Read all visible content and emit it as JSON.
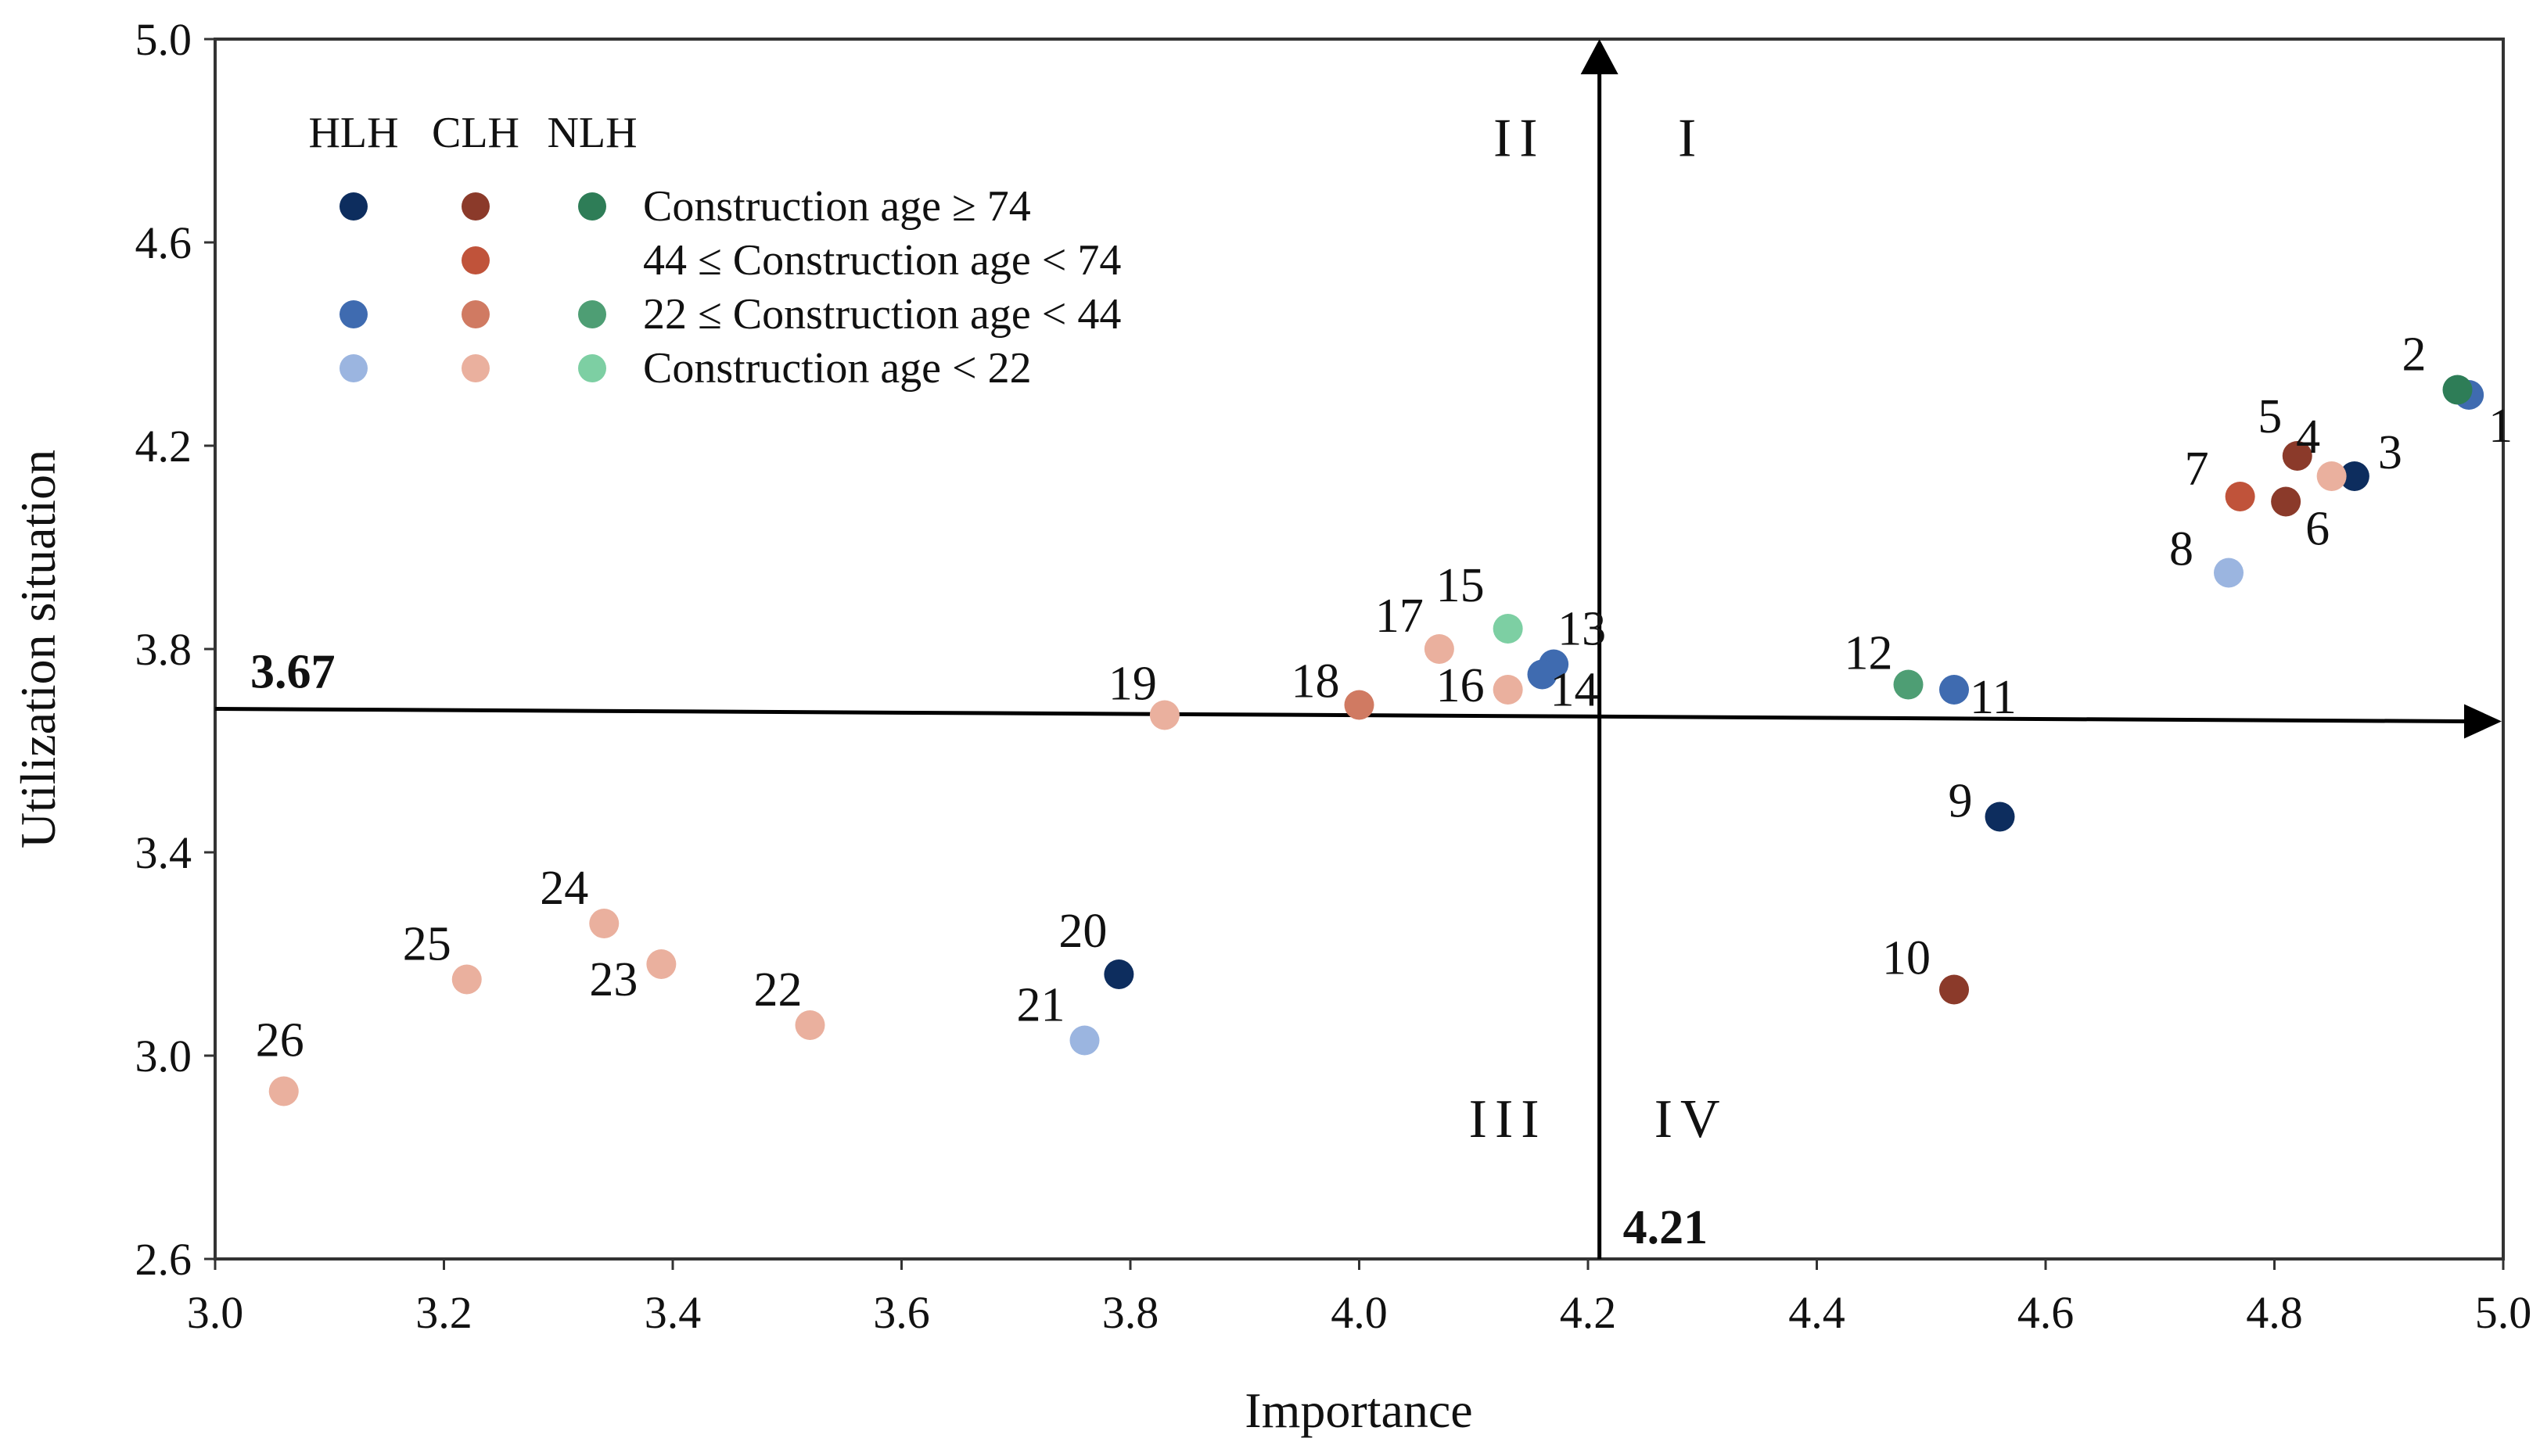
{
  "chart_data": {
    "type": "scatter",
    "xlabel": "Importance",
    "ylabel": "Utilization situation",
    "xlim": [
      3.0,
      5.0
    ],
    "ylim": [
      2.6,
      5.0
    ],
    "xticks": [
      "3.0",
      "3.2",
      "3.4",
      "3.6",
      "3.8",
      "4.0",
      "4.2",
      "4.4",
      "4.6",
      "4.8",
      "5.0"
    ],
    "yticks": [
      "2.6",
      "3.0",
      "3.4",
      "3.8",
      "4.2",
      "4.6",
      "5.0"
    ],
    "thresholds": {
      "x": 4.21,
      "y": 3.67,
      "x_label": "4.21",
      "y_label": "3.67"
    },
    "quadrants": [
      {
        "label": "I",
        "x": 4.29,
        "y": 4.77
      },
      {
        "label": "II",
        "x": 4.14,
        "y": 4.77
      },
      {
        "label": "III",
        "x": 4.13,
        "y": 2.84
      },
      {
        "label": "IV",
        "x": 4.29,
        "y": 2.84
      }
    ],
    "legend": {
      "headers": [
        "HLH",
        "CLH",
        "NLH"
      ],
      "rows": [
        {
          "label": "Construction age ≥ 74",
          "colors": [
            "#0d2d5e",
            "#8b3a2a",
            "#2e7d57"
          ]
        },
        {
          "label": "44 ≤ Construction age < 74",
          "colors": [
            null,
            "#c0533a",
            null
          ]
        },
        {
          "label": "22 ≤ Construction age < 44",
          "colors": [
            "#3f6bb0",
            "#d07a62",
            "#4e9e74"
          ]
        },
        {
          "label": "Construction age < 22",
          "colors": [
            "#9bb5e0",
            "#eab09e",
            "#7dcfa3"
          ]
        }
      ]
    },
    "series": [
      {
        "name": "HLH, Construction age ≥ 74",
        "color": "#0d2d5e",
        "points": [
          {
            "id": "3",
            "x": 4.87,
            "y": 4.14
          },
          {
            "id": "9",
            "x": 4.56,
            "y": 3.47
          },
          {
            "id": "20",
            "x": 3.79,
            "y": 3.16
          }
        ]
      },
      {
        "name": "HLH, 22 ≤ Construction age < 44",
        "color": "#3f6bb0",
        "points": [
          {
            "id": "1",
            "x": 4.97,
            "y": 4.3
          },
          {
            "id": "11",
            "x": 4.52,
            "y": 3.72
          },
          {
            "id": "13",
            "x": 4.17,
            "y": 3.77
          },
          {
            "id": "14",
            "x": 4.16,
            "y": 3.75
          }
        ]
      },
      {
        "name": "HLH, Construction age < 22",
        "color": "#9bb5e0",
        "points": [
          {
            "id": "8",
            "x": 4.76,
            "y": 3.95
          },
          {
            "id": "21",
            "x": 3.76,
            "y": 3.03
          }
        ]
      },
      {
        "name": "CLH, Construction age ≥ 74",
        "color": "#8b3a2a",
        "points": [
          {
            "id": "5",
            "x": 4.82,
            "y": 4.18
          },
          {
            "id": "6",
            "x": 4.81,
            "y": 4.09
          },
          {
            "id": "10",
            "x": 4.52,
            "y": 3.13
          }
        ]
      },
      {
        "name": "CLH, 44 ≤ Construction age < 74",
        "color": "#c0533a",
        "points": [
          {
            "id": "7",
            "x": 4.77,
            "y": 4.1
          }
        ]
      },
      {
        "name": "CLH, 22 ≤ Construction age < 44",
        "color": "#d07a62",
        "points": [
          {
            "id": "18",
            "x": 4.0,
            "y": 3.69
          }
        ]
      },
      {
        "name": "CLH, Construction age < 22",
        "color": "#eab09e",
        "points": [
          {
            "id": "4",
            "x": 4.85,
            "y": 4.14
          },
          {
            "id": "16",
            "x": 4.13,
            "y": 3.72
          },
          {
            "id": "17",
            "x": 4.07,
            "y": 3.8
          },
          {
            "id": "19",
            "x": 3.83,
            "y": 3.67
          },
          {
            "id": "22",
            "x": 3.52,
            "y": 3.06
          },
          {
            "id": "23",
            "x": 3.39,
            "y": 3.18
          },
          {
            "id": "24",
            "x": 3.34,
            "y": 3.26
          },
          {
            "id": "25",
            "x": 3.22,
            "y": 3.15
          },
          {
            "id": "26",
            "x": 3.06,
            "y": 2.93
          }
        ]
      },
      {
        "name": "NLH, Construction age ≥ 74",
        "color": "#2e7d57",
        "points": [
          {
            "id": "2",
            "x": 4.96,
            "y": 4.31
          }
        ]
      },
      {
        "name": "NLH, 22 ≤ Construction age < 44",
        "color": "#4e9e74",
        "points": [
          {
            "id": "12",
            "x": 4.48,
            "y": 3.73
          }
        ]
      },
      {
        "name": "NLH, Construction age < 22",
        "color": "#7dcfa3",
        "points": [
          {
            "id": "15",
            "x": 4.13,
            "y": 3.84
          }
        ]
      }
    ]
  }
}
